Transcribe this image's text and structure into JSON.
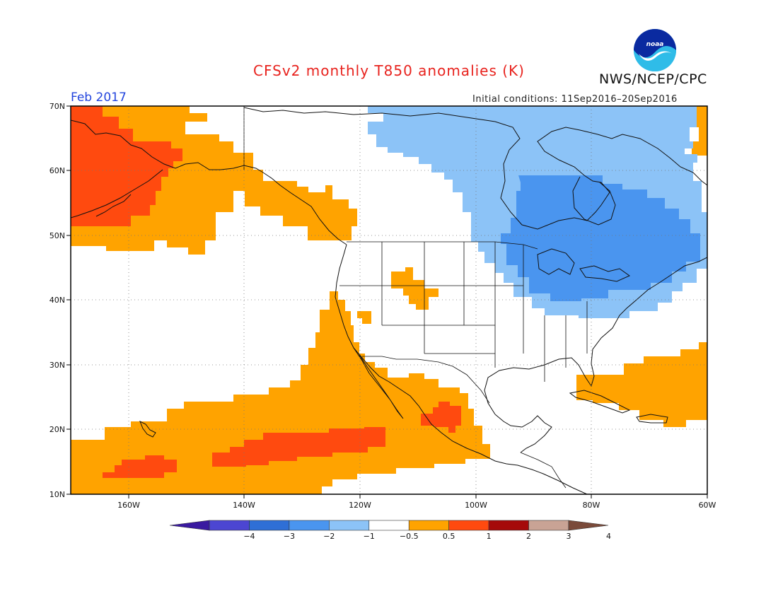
{
  "title": "CFSv2 monthly T850 anomalies (K)",
  "agency": "NWS/NCEP/CPC",
  "logo_text": "noaa",
  "valid_label": "Feb 2017",
  "initial_conditions": "Initial conditions: 11Sep2016–20Sep2016",
  "lat_ticks": [
    "70N",
    "60N",
    "50N",
    "40N",
    "30N",
    "20N",
    "10N"
  ],
  "lon_ticks": [
    "160W",
    "140W",
    "120W",
    "100W",
    "80W",
    "60W"
  ],
  "colorbar": {
    "labels": [
      "−4",
      "−3",
      "−2",
      "−1",
      "−0.5",
      "0.5",
      "1",
      "2",
      "3",
      "4"
    ],
    "colors": [
      "#3a1aa0",
      "#4c46d2",
      "#2f6fd6",
      "#4a95ef",
      "#8cc3f7",
      "#ffffff",
      "#ffa300",
      "#ff4a0f",
      "#a50a0a",
      "#c9a395",
      "#7a4a3a"
    ]
  },
  "legend_colors": {
    "anomaly_0.5_to_1": "#ffa300",
    "anomaly_1_to_2": "#ff4a0f",
    "anomaly_-1_to_-0.5": "#8cc3f7",
    "anomaly_-2_to_-1": "#4a95ef"
  }
}
